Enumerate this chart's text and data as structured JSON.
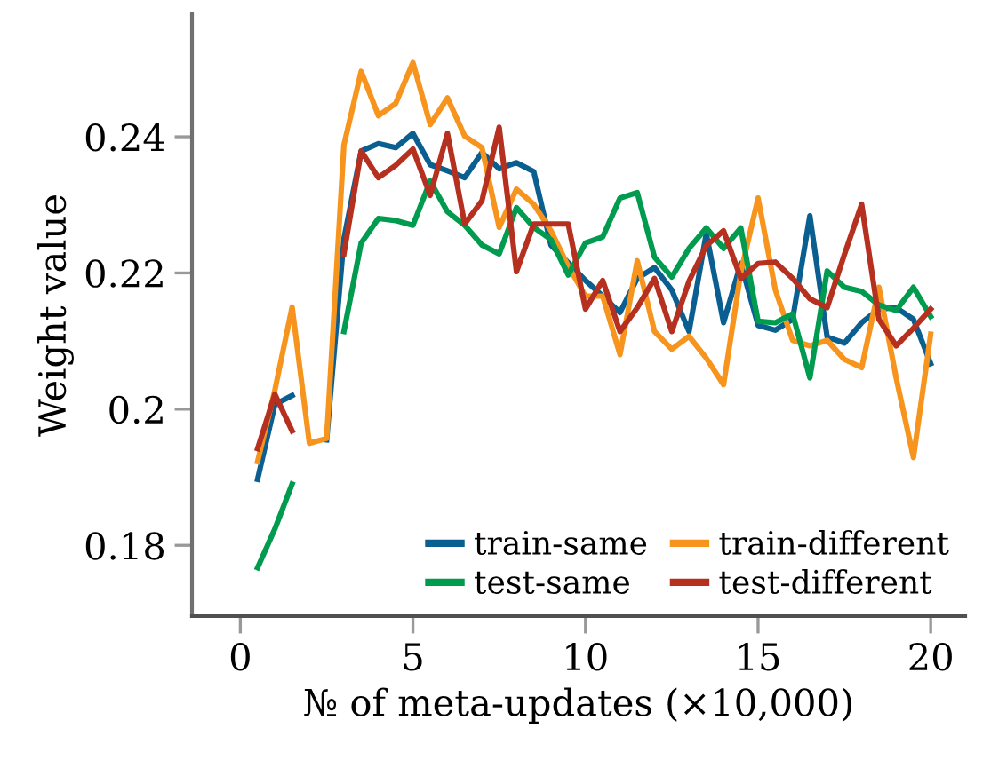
{
  "chart_data": {
    "type": "line",
    "xlabel": "№ of meta-updates (×10,000)",
    "ylabel": "Weight value",
    "x": [
      0.5,
      1,
      1.5,
      2,
      2.5,
      3,
      3.5,
      4,
      4.5,
      5,
      5.5,
      6,
      6.5,
      7,
      7.5,
      8,
      8.5,
      9,
      9.5,
      10,
      10.5,
      11,
      11.5,
      12,
      12.5,
      13,
      13.5,
      14,
      14.5,
      15,
      15.5,
      16,
      16.5,
      17,
      17.5,
      18,
      18.5,
      19,
      19.5,
      20
    ],
    "series": [
      {
        "name": "train-same",
        "color": "#0b5f90",
        "values": [
          0.1897,
          0.2007,
          0.202,
          null,
          0.1955,
          0.225,
          0.2379,
          0.239,
          0.2384,
          0.2405,
          0.2359,
          0.235,
          0.234,
          0.2377,
          0.2353,
          0.2362,
          0.2349,
          0.2241,
          0.2215,
          0.2189,
          0.2166,
          0.2142,
          0.2192,
          0.2208,
          0.2175,
          0.2114,
          0.2258,
          0.2127,
          0.2214,
          0.2123,
          0.2116,
          0.2132,
          0.2284,
          0.2106,
          0.2097,
          0.2127,
          0.2147,
          0.2149,
          0.2132,
          0.2067
        ]
      },
      {
        "name": "train-different",
        "color": "#f7941d",
        "values": [
          0.1923,
          0.2028,
          0.215,
          0.195,
          0.1957,
          0.2388,
          0.2496,
          0.2431,
          0.2449,
          0.2509,
          0.2418,
          0.2457,
          0.2401,
          0.2384,
          0.2267,
          0.2323,
          0.2301,
          0.2262,
          0.221,
          0.2166,
          0.2166,
          0.208,
          0.2218,
          0.2114,
          0.2088,
          0.2107,
          0.2075,
          0.2036,
          0.2201,
          0.231,
          0.2175,
          0.2101,
          0.2093,
          0.2101,
          0.2073,
          0.2061,
          0.2179,
          0.2046,
          0.1929,
          0.211
        ]
      },
      {
        "name": "test-same",
        "color": "#009b4e",
        "values": [
          0.1767,
          0.1824,
          0.189,
          null,
          null,
          0.2114,
          0.2244,
          0.228,
          0.2277,
          0.227,
          0.2335,
          0.229,
          0.227,
          0.2241,
          0.2228,
          0.2296,
          0.2267,
          0.2249,
          0.2197,
          0.2244,
          0.2253,
          0.231,
          0.2318,
          0.2223,
          0.2194,
          0.2236,
          0.2266,
          0.2236,
          0.2266,
          0.2129,
          0.2127,
          0.214,
          0.2046,
          0.2203,
          0.2179,
          0.2173,
          0.2153,
          0.2145,
          0.2179,
          0.2136
        ]
      },
      {
        "name": "test-different",
        "color": "#b5301f",
        "values": [
          0.1942,
          0.2022,
          0.1968,
          null,
          null,
          0.2228,
          0.2379,
          0.234,
          0.2358,
          0.2382,
          0.2314,
          0.2405,
          0.2272,
          0.2306,
          0.2414,
          0.2202,
          0.2272,
          0.2272,
          0.2272,
          0.2147,
          0.2189,
          0.2114,
          0.2149,
          0.2192,
          0.2114,
          0.2188,
          0.224,
          0.2262,
          0.2192,
          0.2214,
          0.2216,
          0.2192,
          0.2162,
          0.2149,
          0.2227,
          0.2301,
          0.2132,
          0.2093,
          0.2119,
          0.2147
        ]
      }
    ],
    "xlim": [
      -1.4,
      21
    ],
    "ylim": [
      0.1696,
      0.258
    ],
    "xticks": [
      0,
      5,
      10,
      15,
      20
    ],
    "yticks": [
      0.18,
      0.2,
      0.22,
      0.24
    ],
    "legend": "bottom right",
    "grid": false,
    "marker": "none",
    "line_style": "solid"
  }
}
